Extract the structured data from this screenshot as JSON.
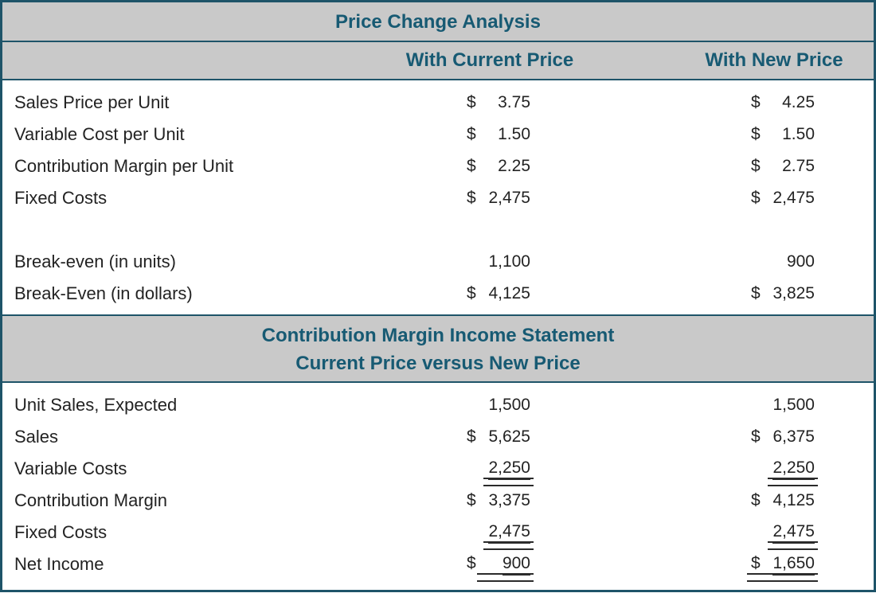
{
  "colors": {
    "banner_background": "#c9c9c9",
    "teal_heading_text": "#175a73",
    "border_teal": "#1e5469",
    "body_text": "#232323",
    "body_background": "#ffffff"
  },
  "title": "Price Change Analysis",
  "columns": {
    "current": "With Current Price",
    "new": "With New Price"
  },
  "price_analysis": {
    "rows": [
      {
        "label": "Sales Price per Unit",
        "cur1": "$",
        "val1": "3.75",
        "cur2": "$",
        "val2": "4.25"
      },
      {
        "label": "Variable Cost per Unit",
        "cur1": "$",
        "val1": "1.50",
        "cur2": "$",
        "val2": "1.50"
      },
      {
        "label": "Contribution Margin per Unit",
        "cur1": "$",
        "val1": "2.25",
        "cur2": "$",
        "val2": "2.75"
      },
      {
        "label": "Fixed Costs",
        "cur1": "$",
        "val1": "2,475",
        "cur2": "$",
        "val2": "2,475"
      },
      {
        "label": "Break-even (in units)",
        "cur1": "",
        "val1": "1,100",
        "cur2": "",
        "val2": "900"
      },
      {
        "label": "Break-Even (in dollars)",
        "cur1": "$",
        "val1": "4,125",
        "cur2": "$",
        "val2": "3,825"
      }
    ]
  },
  "statement": {
    "title_line1": "Contribution Margin Income Statement",
    "title_line2": "Current Price versus New Price",
    "rows": [
      {
        "label": "Unit Sales, Expected",
        "cur1": "",
        "val1": "1,500",
        "cur2": "",
        "val2": "1,500",
        "rule": ""
      },
      {
        "label": "Sales",
        "cur1": "$",
        "val1": "5,625",
        "cur2": "$",
        "val2": "6,375",
        "rule": ""
      },
      {
        "label": "Variable Costs",
        "cur1": "",
        "val1": "2,250",
        "cur2": "",
        "val2": "2,250",
        "rule": "rule"
      },
      {
        "label": "Contribution Margin",
        "cur1": "$",
        "val1": "3,375",
        "cur2": "$",
        "val2": "4,125",
        "rule": ""
      },
      {
        "label": "Fixed Costs",
        "cur1": "",
        "val1": "2,475",
        "cur2": "",
        "val2": "2,475",
        "rule": "rule"
      },
      {
        "label": "Net Income",
        "cur1": "$",
        "val1": "900",
        "cur2": "$",
        "val2": "1,650",
        "rule": "rule rule-full"
      }
    ]
  }
}
